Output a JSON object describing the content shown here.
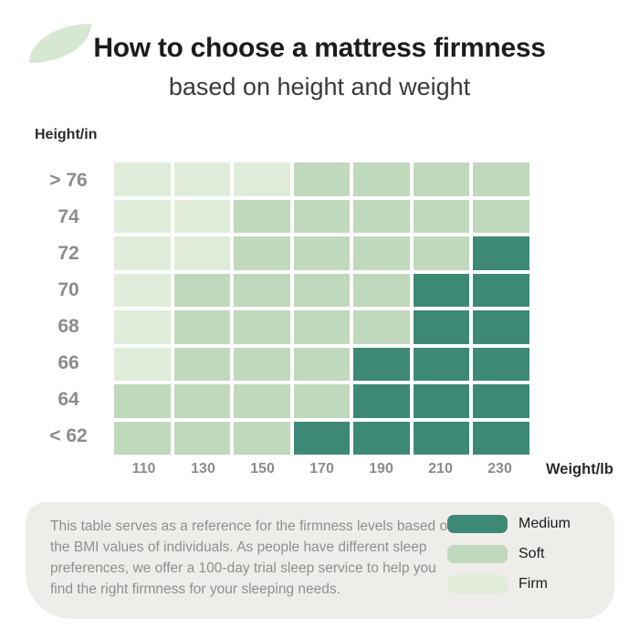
{
  "header": {
    "title": "How to choose a mattress firmness",
    "subtitle": "based on height and weight"
  },
  "chart_data": {
    "type": "heatmap",
    "title": "How to choose a mattress firmness",
    "subtitle": "based on height and weight",
    "xlabel": "Weight/lb",
    "ylabel": "Height/in",
    "x_ticks": [
      "110",
      "130",
      "150",
      "170",
      "190",
      "210",
      "230"
    ],
    "y_ticks": [
      "> 76",
      "74",
      "72",
      "70",
      "68",
      "66",
      "64",
      "< 62"
    ],
    "legend_position": "bottom-right",
    "grid": "white 4px gaps between cells",
    "cell_values": [
      [
        "firm",
        "firm",
        "firm",
        "soft",
        "soft",
        "soft",
        "soft"
      ],
      [
        "firm",
        "firm",
        "soft",
        "soft",
        "soft",
        "soft",
        "soft"
      ],
      [
        "firm",
        "firm",
        "soft",
        "soft",
        "soft",
        "soft",
        "medium"
      ],
      [
        "firm",
        "soft",
        "soft",
        "soft",
        "soft",
        "medium",
        "medium"
      ],
      [
        "firm",
        "soft",
        "soft",
        "soft",
        "soft",
        "medium",
        "medium"
      ],
      [
        "firm",
        "soft",
        "soft",
        "soft",
        "medium",
        "medium",
        "medium"
      ],
      [
        "soft",
        "soft",
        "soft",
        "soft",
        "medium",
        "medium",
        "medium"
      ],
      [
        "soft",
        "soft",
        "soft",
        "medium",
        "medium",
        "medium",
        "medium"
      ]
    ]
  },
  "footer": {
    "note": "This table serves as a reference for the firmness levels based on the BMI values of individuals. As people have different sleep preferences, we offer a 100-day trial sleep service to help you find the right firmness for your sleeping needs.",
    "legend": [
      {
        "label": "Medium",
        "color_key": "medium"
      },
      {
        "label": "Soft",
        "color_key": "soft"
      },
      {
        "label": "Firm",
        "color_key": "firm"
      }
    ]
  },
  "colors": {
    "medium": "#3e8876",
    "soft": "#c0d8bb",
    "firm": "#dfecd9",
    "leaf_accent": "#d7e8d2",
    "footer_background": "#efedea"
  }
}
